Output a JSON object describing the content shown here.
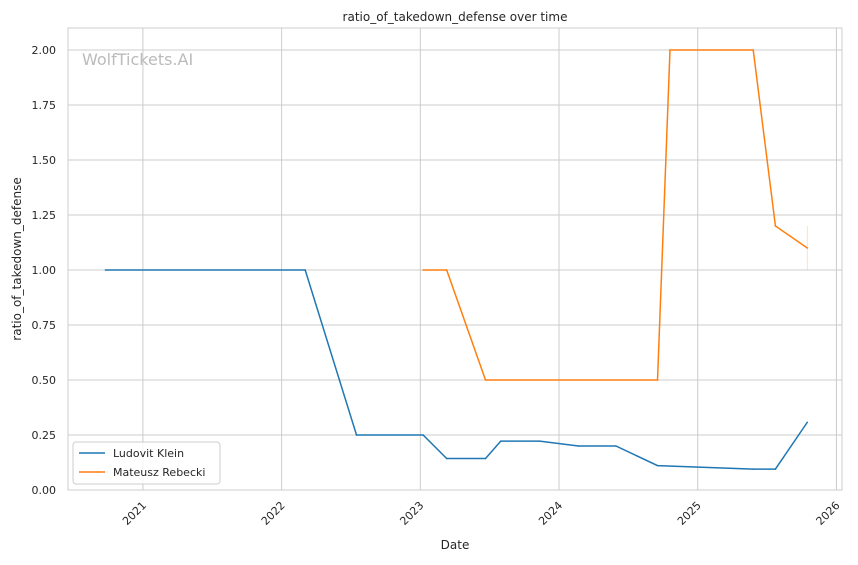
{
  "chart_data": {
    "type": "line",
    "title": "ratio_of_takedown_defense over time",
    "xlabel": "Date",
    "ylabel": "ratio_of_takedown_defense",
    "xlim": [
      2020.46,
      2026.04
    ],
    "ylim": [
      0,
      2.1
    ],
    "x_ticks": [
      "2021",
      "2022",
      "2023",
      "2024",
      "2025",
      "2026"
    ],
    "x_tick_values": [
      2021,
      2022,
      2023,
      2024,
      2025,
      2026
    ],
    "y_ticks": [
      "0.00",
      "0.25",
      "0.50",
      "0.75",
      "1.00",
      "1.25",
      "1.50",
      "1.75",
      "2.00"
    ],
    "y_tick_values": [
      0,
      0.25,
      0.5,
      0.75,
      1.0,
      1.25,
      1.5,
      1.75,
      2.0
    ],
    "grid": true,
    "legend_position": "bottom-left",
    "watermark": "WolfTickets.AI",
    "series": [
      {
        "name": "Ludovit Klein",
        "color": "#1f77b4",
        "x": [
          2020.73,
          2022.17,
          2022.54,
          2023.02,
          2023.19,
          2023.47,
          2023.58,
          2023.86,
          2024.14,
          2024.41,
          2024.71,
          2025.4,
          2025.56,
          2025.79
        ],
        "values": [
          1.0,
          1.0,
          0.25,
          0.25,
          0.143,
          0.143,
          0.222,
          0.222,
          0.2,
          0.2,
          0.111,
          0.095,
          0.095,
          0.308
        ]
      },
      {
        "name": "Mateusz Rebecki",
        "color": "#ff7f0e",
        "x": [
          2023.02,
          2023.19,
          2023.47,
          2024.71,
          2024.8,
          2025.4,
          2025.56,
          2025.79
        ],
        "values": [
          1.0,
          1.0,
          0.5,
          0.5,
          2.0,
          2.0,
          1.2,
          1.1
        ],
        "band_at_last": [
          1.0,
          1.2
        ]
      }
    ]
  }
}
